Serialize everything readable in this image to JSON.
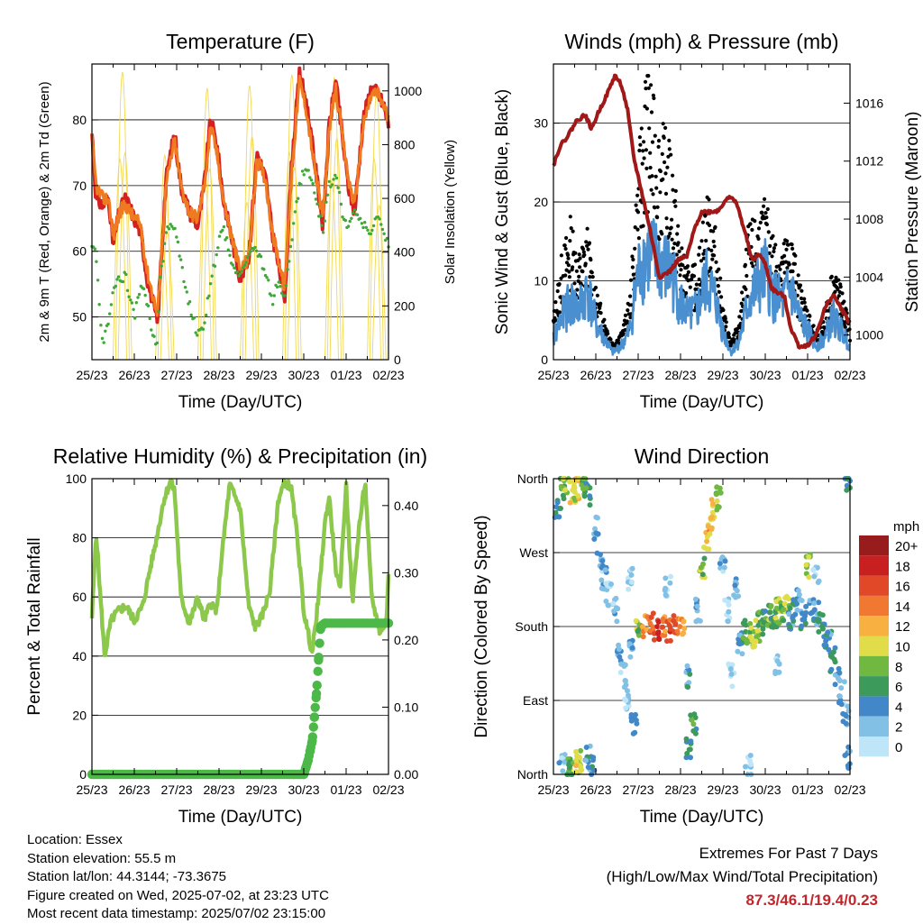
{
  "axis_ticks": {
    "time": [
      "25/23",
      "26/23",
      "27/23",
      "28/23",
      "29/23",
      "30/23",
      "01/23",
      "02/23"
    ]
  },
  "chart_data": [
    {
      "type": "line",
      "title": "Temperature (F)",
      "xlabel": "Time (Day/UTC)",
      "ylabel": "2m & 9m T (Red, Orange) & 2m Td (Green)",
      "y2label": "Solar Insolation (Yellow)",
      "ylim": [
        43.5,
        88.5
      ],
      "y_ticks": [
        50,
        60,
        70,
        80
      ],
      "y2lim": [
        0,
        1100
      ],
      "y2_ticks": [
        0,
        200,
        400,
        600,
        800,
        1000
      ],
      "x": [
        0,
        0.1,
        0.25,
        0.4,
        0.5,
        0.65,
        0.8,
        1.0,
        1.15,
        1.3,
        1.45,
        1.55,
        1.6,
        1.75,
        1.95,
        2.1,
        2.3,
        2.5,
        2.65,
        2.8,
        2.95,
        3.1,
        3.3,
        3.5,
        3.7,
        3.9,
        4.1,
        4.25,
        4.4,
        4.55,
        4.7,
        4.9,
        5.05,
        5.25,
        5.45,
        5.6,
        5.75,
        5.9,
        6.05,
        6.2,
        6.4,
        6.6,
        6.75,
        6.9,
        7.0
      ],
      "series": [
        {
          "name": "2m T",
          "color": "#d42020",
          "values": [
            78,
            68,
            67,
            68,
            61,
            66,
            68,
            65,
            63,
            56,
            52,
            49,
            55,
            71,
            78,
            70,
            66,
            64,
            70,
            80,
            76,
            68,
            62,
            56,
            59,
            75,
            71,
            63,
            58,
            53,
            72,
            87,
            83,
            74,
            64,
            79,
            86,
            78,
            70,
            66,
            80,
            85,
            84,
            82,
            79
          ]
        },
        {
          "name": "9m T",
          "color": "#f07a20",
          "values": [
            77,
            70,
            68,
            68,
            62,
            66,
            67,
            65,
            64,
            57,
            53,
            50,
            56,
            70,
            77,
            70,
            66,
            65,
            70,
            79,
            75,
            68,
            62,
            57,
            59,
            74,
            71,
            63,
            59,
            54,
            71,
            86,
            82,
            73,
            65,
            78,
            85,
            78,
            71,
            67,
            79,
            84,
            84,
            82,
            80
          ]
        },
        {
          "name": "2m Td",
          "color": "#40a838",
          "values": [
            61,
            59,
            46,
            50,
            54,
            56,
            56,
            50,
            55,
            52,
            47,
            46,
            55,
            63,
            64,
            58,
            52,
            47,
            49,
            55,
            60,
            64,
            58,
            56,
            60,
            60,
            57,
            52,
            56,
            53,
            61,
            70,
            73,
            69,
            63,
            70,
            72,
            66,
            63,
            66,
            64,
            62,
            66,
            62,
            61
          ]
        }
      ],
      "solar_insolation": {
        "name": "Solar Insolation",
        "color": "#f3d84a",
        "daily_peaks": [
          1070,
          760,
          1010,
          1020,
          1060,
          1050,
          1000,
          800
        ]
      }
    },
    {
      "type": "scatter",
      "title": "Winds (mph) & Pressure (mb)",
      "xlabel": "Time (Day/UTC)",
      "ylabel": "Sonic Wind & Gust (Blue, Black)",
      "y2label": "Station Pressure (Maroon)",
      "ylim": [
        0,
        37.5
      ],
      "y_ticks": [
        0,
        10,
        20,
        30
      ],
      "y2lim": [
        998.3,
        1018.7
      ],
      "y2_ticks": [
        1000,
        1004,
        1008,
        1012,
        1016
      ],
      "wind": {
        "name": "Sonic Wind",
        "color": "#4a90d0",
        "x": [
          0,
          0.2,
          0.4,
          0.6,
          0.8,
          1.0,
          1.2,
          1.4,
          1.6,
          1.8,
          2.0,
          2.2,
          2.4,
          2.6,
          2.8,
          3.0,
          3.2,
          3.4,
          3.6,
          3.8,
          4.0,
          4.2,
          4.4,
          4.6,
          4.8,
          5.0,
          5.2,
          5.4,
          5.6,
          5.8,
          6.0,
          6.2,
          6.4,
          6.6,
          6.8,
          7.0
        ],
        "values": [
          3,
          6,
          8,
          7,
          10,
          5,
          3,
          1,
          2,
          4,
          12,
          15,
          14,
          13,
          12,
          8,
          6,
          7,
          11,
          9,
          4,
          1,
          3,
          8,
          10,
          12,
          9,
          8,
          10,
          6,
          4,
          2,
          3,
          6,
          4,
          2
        ]
      },
      "gust": {
        "name": "Gust",
        "color": "#000000",
        "x": [
          0,
          0.2,
          0.4,
          0.6,
          0.8,
          1.0,
          1.2,
          1.4,
          1.6,
          1.8,
          2.0,
          2.2,
          2.4,
          2.6,
          2.8,
          3.0,
          3.2,
          3.4,
          3.6,
          3.8,
          4.0,
          4.2,
          4.4,
          4.6,
          4.8,
          5.0,
          5.2,
          5.4,
          5.6,
          5.8,
          6.0,
          6.2,
          6.4,
          6.6,
          6.8,
          7.0
        ],
        "values": [
          5,
          12,
          16,
          12,
          15,
          8,
          5,
          2,
          3,
          7,
          22,
          35,
          28,
          26,
          24,
          13,
          10,
          11,
          19,
          16,
          6,
          2,
          5,
          15,
          16,
          18,
          14,
          13,
          15,
          9,
          6,
          3,
          5,
          11,
          8,
          4
        ]
      },
      "pressure": {
        "name": "Station Pressure",
        "color": "#a01818",
        "x": [
          0,
          0.15,
          0.35,
          0.55,
          0.75,
          0.9,
          1.05,
          1.25,
          1.45,
          1.6,
          1.75,
          1.9,
          2.05,
          2.25,
          2.5,
          2.75,
          2.95,
          3.15,
          3.35,
          3.5,
          3.7,
          3.9,
          4.1,
          4.3,
          4.5,
          4.7,
          4.85,
          5.0,
          5.15,
          5.3,
          5.45,
          5.6,
          5.8,
          6.0,
          6.2,
          6.4,
          6.6,
          6.8,
          7.0
        ],
        "values": [
          1011.7,
          1013.0,
          1013.8,
          1014.8,
          1015.2,
          1014.2,
          1015.3,
          1016.5,
          1017.9,
          1017.3,
          1015.5,
          1012.2,
          1010.3,
          1007.7,
          1004.0,
          1004.4,
          1005.2,
          1005.4,
          1007.5,
          1008.5,
          1008.5,
          1008.6,
          1009.5,
          1009.3,
          1007.3,
          1005.1,
          1005.6,
          1004.9,
          1003.2,
          1002.9,
          1002.7,
          1000.5,
          999.2,
          999.3,
          1000.0,
          1001.8,
          1002.8,
          1001.8,
          1000.8
        ]
      }
    },
    {
      "type": "line",
      "title": "Relative Humidity (%) & Precipitation (in)",
      "xlabel": "Time (Day/UTC)",
      "ylabel": "Percent & Total Rainfall",
      "ylim": [
        0,
        100
      ],
      "y_ticks": [
        0,
        20,
        40,
        60,
        80,
        100
      ],
      "y2lim": [
        0,
        0.44
      ],
      "y2_ticks": [
        "0.00",
        "0.10",
        "0.20",
        "0.30",
        "0.40"
      ],
      "humidity": {
        "name": "Relative Humidity",
        "color": "#8cc84b",
        "x": [
          0,
          0.1,
          0.2,
          0.3,
          0.45,
          0.6,
          0.8,
          1.0,
          1.2,
          1.35,
          1.5,
          1.7,
          1.85,
          1.95,
          2.1,
          2.3,
          2.5,
          2.65,
          2.8,
          2.95,
          3.05,
          3.25,
          3.5,
          3.7,
          3.85,
          4.0,
          4.2,
          4.4,
          4.55,
          4.7,
          4.85,
          5.0,
          5.2,
          5.35,
          5.5,
          5.6,
          5.75,
          5.85,
          6.0,
          6.15,
          6.3,
          6.45,
          6.6,
          6.8,
          6.95,
          7.0
        ],
        "values": [
          53,
          82,
          60,
          40,
          52,
          55,
          57,
          52,
          57,
          68,
          78,
          93,
          99,
          96,
          60,
          51,
          60,
          52,
          58,
          55,
          72,
          98,
          90,
          57,
          50,
          53,
          62,
          93,
          99,
          97,
          80,
          55,
          41,
          60,
          85,
          94,
          70,
          62,
          98,
          58,
          83,
          99,
          60,
          48,
          52,
          67
        ]
      },
      "precipitation": {
        "name": "Precipitation",
        "color": "#4cb848",
        "x": [
          0,
          5.0,
          5.1,
          5.2,
          5.3,
          5.4,
          5.5,
          7.0
        ],
        "values": [
          0,
          0,
          0.02,
          0.05,
          0.12,
          0.22,
          0.225,
          0.225
        ]
      }
    },
    {
      "type": "scatter",
      "title": "Wind Direction",
      "xlabel": "Time (Day/UTC)",
      "ylabel": "Direction (Colored By Speed)",
      "y_ticks": [
        "North",
        "East",
        "South",
        "West",
        "North"
      ],
      "color_scale": {
        "unit": "mph",
        "labels": [
          "0",
          "2",
          "4",
          "6",
          "8",
          "10",
          "12",
          "14",
          "16",
          "18",
          "20+"
        ],
        "colors": [
          "#bfe6f8",
          "#82c0e6",
          "#4288c8",
          "#3c9a5a",
          "#70b840",
          "#e0dc4a",
          "#f8b040",
          "#f07830",
          "#e04828",
          "#c82020",
          "#981c1c"
        ]
      },
      "points": [
        {
          "x": 0.1,
          "dir": 320,
          "spd": 5
        },
        {
          "x": 0.2,
          "dir": 350,
          "spd": 7
        },
        {
          "x": 0.3,
          "dir": 355,
          "spd": 9
        },
        {
          "x": 0.35,
          "dir": 5,
          "spd": 8
        },
        {
          "x": 0.45,
          "dir": 345,
          "spd": 10
        },
        {
          "x": 0.55,
          "dir": 350,
          "spd": 11
        },
        {
          "x": 0.6,
          "dir": 15,
          "spd": 9
        },
        {
          "x": 0.7,
          "dir": 355,
          "spd": 8
        },
        {
          "x": 0.8,
          "dir": 340,
          "spd": 6
        },
        {
          "x": 0.9,
          "dir": 10,
          "spd": 4
        },
        {
          "x": 1.0,
          "dir": 300,
          "spd": 3
        },
        {
          "x": 1.1,
          "dir": 260,
          "spd": 2
        },
        {
          "x": 1.2,
          "dir": 240,
          "spd": 3
        },
        {
          "x": 1.3,
          "dir": 220,
          "spd": 1
        },
        {
          "x": 1.45,
          "dir": 200,
          "spd": 2
        },
        {
          "x": 1.55,
          "dir": 150,
          "spd": 3
        },
        {
          "x": 1.65,
          "dir": 120,
          "spd": 2
        },
        {
          "x": 1.75,
          "dir": 90,
          "spd": 1
        },
        {
          "x": 1.85,
          "dir": 150,
          "spd": 2
        },
        {
          "x": 1.9,
          "dir": 60,
          "spd": 4
        },
        {
          "x": 2.0,
          "dir": 175,
          "spd": 8
        },
        {
          "x": 2.15,
          "dir": 180,
          "spd": 13
        },
        {
          "x": 2.3,
          "dir": 182,
          "spd": 15
        },
        {
          "x": 2.45,
          "dir": 178,
          "spd": 17
        },
        {
          "x": 2.6,
          "dir": 180,
          "spd": 14
        },
        {
          "x": 2.75,
          "dir": 176,
          "spd": 16
        },
        {
          "x": 2.9,
          "dir": 180,
          "spd": 15
        },
        {
          "x": 3.05,
          "dir": 178,
          "spd": 13
        },
        {
          "x": 3.2,
          "dir": 120,
          "spd": 4
        },
        {
          "x": 3.3,
          "dir": 60,
          "spd": 6
        },
        {
          "x": 3.4,
          "dir": 200,
          "spd": 3
        },
        {
          "x": 3.5,
          "dir": 250,
          "spd": 8
        },
        {
          "x": 3.6,
          "dir": 280,
          "spd": 11
        },
        {
          "x": 3.7,
          "dir": 300,
          "spd": 12
        },
        {
          "x": 3.8,
          "dir": 320,
          "spd": 10
        },
        {
          "x": 3.9,
          "dir": 340,
          "spd": 8
        },
        {
          "x": 4.0,
          "dir": 250,
          "spd": 2
        },
        {
          "x": 4.1,
          "dir": 200,
          "spd": 1
        },
        {
          "x": 4.2,
          "dir": 120,
          "spd": 1
        },
        {
          "x": 4.3,
          "dir": 230,
          "spd": 3
        },
        {
          "x": 4.4,
          "dir": 160,
          "spd": 3
        },
        {
          "x": 4.5,
          "dir": 175,
          "spd": 6
        },
        {
          "x": 4.6,
          "dir": 170,
          "spd": 8
        },
        {
          "x": 4.7,
          "dir": 165,
          "spd": 10
        },
        {
          "x": 4.8,
          "dir": 175,
          "spd": 9
        },
        {
          "x": 4.9,
          "dir": 185,
          "spd": 7
        },
        {
          "x": 5.0,
          "dir": 190,
          "spd": 6
        },
        {
          "x": 5.1,
          "dir": 195,
          "spd": 8
        },
        {
          "x": 5.2,
          "dir": 185,
          "spd": 5
        },
        {
          "x": 5.3,
          "dir": 200,
          "spd": 9
        },
        {
          "x": 5.4,
          "dir": 195,
          "spd": 7
        },
        {
          "x": 5.5,
          "dir": 205,
          "spd": 10
        },
        {
          "x": 5.6,
          "dir": 190,
          "spd": 4
        },
        {
          "x": 5.7,
          "dir": 200,
          "spd": 6
        },
        {
          "x": 5.8,
          "dir": 210,
          "spd": 3
        },
        {
          "x": 5.9,
          "dir": 190,
          "spd": 4
        },
        {
          "x": 6.0,
          "dir": 255,
          "spd": 9
        },
        {
          "x": 6.1,
          "dir": 200,
          "spd": 4
        },
        {
          "x": 6.2,
          "dir": 195,
          "spd": 3
        },
        {
          "x": 6.3,
          "dir": 185,
          "spd": 5
        },
        {
          "x": 6.4,
          "dir": 170,
          "spd": 5
        },
        {
          "x": 6.5,
          "dir": 160,
          "spd": 4
        },
        {
          "x": 6.6,
          "dir": 140,
          "spd": 6
        },
        {
          "x": 6.7,
          "dir": 120,
          "spd": 3
        },
        {
          "x": 6.8,
          "dir": 100,
          "spd": 2
        },
        {
          "x": 6.9,
          "dir": 70,
          "spd": 3
        },
        {
          "x": 0.2,
          "dir": 10,
          "spd": 2
        },
        {
          "x": 0.4,
          "dir": 5,
          "spd": 7
        },
        {
          "x": 0.6,
          "dir": 8,
          "spd": 10
        },
        {
          "x": 0.8,
          "dir": 20,
          "spd": 4
        },
        {
          "x": 1.8,
          "dir": 240,
          "spd": 1
        },
        {
          "x": 2.7,
          "dir": 230,
          "spd": 2
        },
        {
          "x": 3.2,
          "dir": 30,
          "spd": 5
        },
        {
          "x": 4.6,
          "dir": 10,
          "spd": 1
        },
        {
          "x": 5.3,
          "dir": 130,
          "spd": 2
        },
        {
          "x": 6.2,
          "dir": 240,
          "spd": 1
        },
        {
          "x": 6.95,
          "dir": 20,
          "spd": 3
        },
        {
          "x": 6.95,
          "dir": 355,
          "spd": 4
        }
      ]
    }
  ],
  "footer": {
    "location": "Location: Essex",
    "elevation": "Station elevation: 55.5 m",
    "latlon": "Station lat/lon: 44.3144; -73.3675",
    "created": "Figure created on Wed, 2025-07-02, at 23:23 UTC",
    "timestamp": "Most recent data timestamp: 2025/07/02 23:15:00",
    "extremes_title": "Extremes For Past 7 Days",
    "extremes_subtitle": "(High/Low/Max Wind/Total Precipitation)",
    "extremes_values": "87.3/46.1/19.4/0.23"
  }
}
